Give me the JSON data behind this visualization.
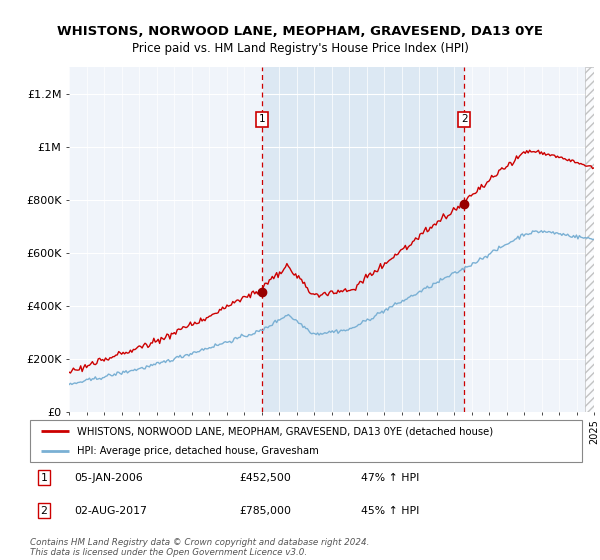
{
  "title": "WHISTONS, NORWOOD LANE, MEOPHAM, GRAVESEND, DA13 0YE",
  "subtitle": "Price paid vs. HM Land Registry's House Price Index (HPI)",
  "background_color": "#e8f0f8",
  "plot_bg_color": "#e8f0f8",
  "red_line_color": "#cc0000",
  "blue_line_color": "#7ab0d4",
  "vline_color": "#cc0000",
  "marker1_price": 452500,
  "marker2_price": 785000,
  "t1": 2006.04,
  "t2": 2017.58,
  "ylim": [
    0,
    1300000
  ],
  "yticks": [
    0,
    200000,
    400000,
    600000,
    800000,
    1000000,
    1200000
  ],
  "ytick_labels": [
    "£0",
    "£200K",
    "£400K",
    "£600K",
    "£800K",
    "£1M",
    "£1.2M"
  ],
  "legend_line1": "WHISTONS, NORWOOD LANE, MEOPHAM, GRAVESEND, DA13 0YE (detached house)",
  "legend_line2": "HPI: Average price, detached house, Gravesham",
  "table_row1": [
    "1",
    "05-JAN-2006",
    "£452,500",
    "47% ↑ HPI"
  ],
  "table_row2": [
    "2",
    "02-AUG-2017",
    "£785,000",
    "45% ↑ HPI"
  ],
  "footer": "Contains HM Land Registry data © Crown copyright and database right 2024.\nThis data is licensed under the Open Government Licence v3.0.",
  "xstart": 1995,
  "xend": 2025
}
